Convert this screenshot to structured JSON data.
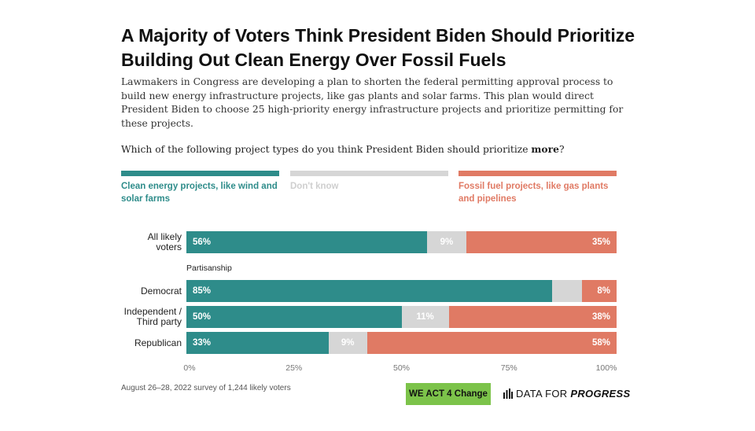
{
  "title": "A Majority of Voters Think President Biden Should Prioritize Building Out Clean Energy Over Fossil Fuels",
  "subtitle": "Lawmakers in Congress are developing a plan to shorten the federal permitting approval process to build new energy infrastructure projects, like gas plants and solar farms. This plan would direct President Biden to choose 25 high-priority energy infrastructure projects and prioritize permitting for these projects.",
  "question": {
    "prefix": "Which of the following project types do you think President Biden should prioritize ",
    "emphasis": "more",
    "suffix": "?"
  },
  "colors": {
    "clean": "#2e8c8a",
    "dont_know": "#d6d6d6",
    "fossil": "#e07a64",
    "dont_know_label": "#cfcfcf"
  },
  "chart_data": {
    "type": "bar",
    "orientation": "horizontal",
    "stacked": true,
    "xlim": [
      0,
      100
    ],
    "x_ticks": [
      "0%",
      "25%",
      "50%",
      "75%",
      "100%"
    ],
    "x_tick_values": [
      0,
      25,
      50,
      75,
      100
    ],
    "legend": [
      {
        "key": "clean",
        "label": "Clean energy projects, like wind and solar farms"
      },
      {
        "key": "dont_know",
        "label": "Don't know"
      },
      {
        "key": "fossil",
        "label": "Fossil fuel projects, like gas plants and pipelines"
      }
    ],
    "group_label": "Partisanship",
    "rows": [
      {
        "label": "All likely voters",
        "clean": 56,
        "dont_know": 9,
        "fossil": 35,
        "clean_text": "56%",
        "dont_know_text": "9%",
        "fossil_text": "35%"
      },
      {
        "label": "Democrat",
        "clean": 85,
        "dont_know": 7,
        "fossil": 8,
        "clean_text": "85%",
        "dont_know_text": "",
        "fossil_text": "8%"
      },
      {
        "label": "Independent / Third party",
        "clean": 50,
        "dont_know": 11,
        "fossil": 38,
        "clean_text": "50%",
        "dont_know_text": "11%",
        "fossil_text": "38%"
      },
      {
        "label": "Republican",
        "clean": 33,
        "dont_know": 9,
        "fossil": 58,
        "clean_text": "33%",
        "dont_know_text": "9%",
        "fossil_text": "58%"
      }
    ]
  },
  "footnote": "August 26–28, 2022 survey of 1,244 likely voters",
  "logos": {
    "we_act": "WE ACT 4 Change",
    "dfp_prefix": "DATA FOR ",
    "dfp_strong": "PROGRESS"
  }
}
